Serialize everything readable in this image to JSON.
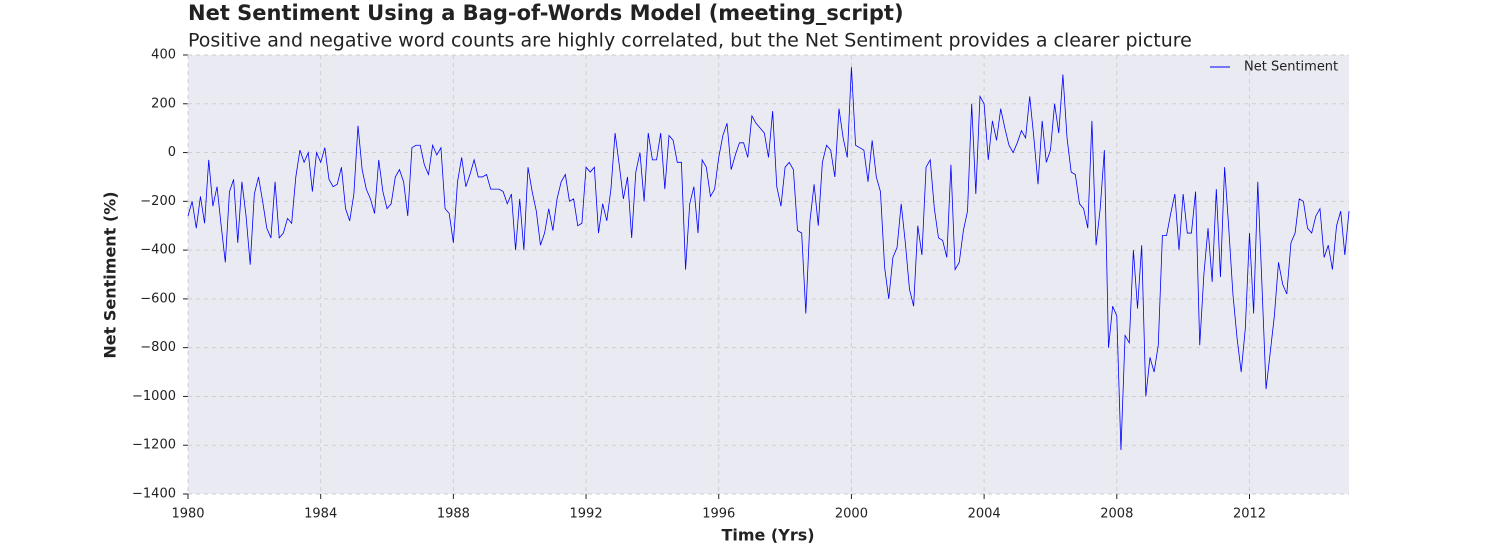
{
  "chart_data": {
    "type": "line",
    "title": "Net Sentiment Using a Bag-of-Words Model (meeting_script)",
    "subtitle": "Positive and negative word counts are highly correlated, but the Net Sentiment provides a clearer picture",
    "x_label": "Time (Yrs)",
    "y_label": "Net Sentiment (%)",
    "xlim": [
      1980,
      2015
    ],
    "xticks": [
      1980,
      1984,
      1988,
      1992,
      1996,
      2000,
      2004,
      2008,
      2012
    ],
    "ylim": [
      -1400,
      400
    ],
    "yticks": [
      {
        "value": -1400,
        "label": "−1400"
      },
      {
        "value": -1200,
        "label": "−1200"
      },
      {
        "value": -1000,
        "label": "−1000"
      },
      {
        "value": -800,
        "label": "−800"
      },
      {
        "value": -600,
        "label": "−600"
      },
      {
        "value": -400,
        "label": "−400"
      },
      {
        "value": -200,
        "label": "−200"
      },
      0,
      200,
      400
    ],
    "grid": true,
    "legend": "upper right",
    "x": [
      1980,
      1980.125,
      1980.25,
      1980.375,
      1980.5,
      1980.625,
      1980.75,
      1980.875,
      1981,
      1981.125,
      1981.25,
      1981.375,
      1981.5,
      1981.625,
      1981.75,
      1981.875,
      1982,
      1982.125,
      1982.25,
      1982.375,
      1982.5,
      1982.625,
      1982.75,
      1982.875,
      1983,
      1983.125,
      1983.25,
      1983.375,
      1983.5,
      1983.625,
      1983.75,
      1983.875,
      1984,
      1984.125,
      1984.25,
      1984.375,
      1984.5,
      1984.625,
      1984.75,
      1984.875,
      1985,
      1985.125,
      1985.25,
      1985.375,
      1985.5,
      1985.625,
      1985.75,
      1985.875,
      1986,
      1986.125,
      1986.25,
      1986.375,
      1986.5,
      1986.625,
      1986.75,
      1986.875,
      1987,
      1987.125,
      1987.25,
      1987.375,
      1987.5,
      1987.625,
      1987.75,
      1987.875,
      1988,
      1988.125,
      1988.25,
      1988.375,
      1988.5,
      1988.625,
      1988.75,
      1988.875,
      1989,
      1989.125,
      1989.25,
      1989.375,
      1989.5,
      1989.625,
      1989.75,
      1989.875,
      1990,
      1990.125,
      1990.25,
      1990.375,
      1990.5,
      1990.625,
      1990.75,
      1990.875,
      1991,
      1991.125,
      1991.25,
      1991.375,
      1991.5,
      1991.625,
      1991.75,
      1991.875,
      1992,
      1992.125,
      1992.25,
      1992.375,
      1992.5,
      1992.625,
      1992.75,
      1992.875,
      1993,
      1993.125,
      1993.25,
      1993.375,
      1993.5,
      1993.625,
      1993.75,
      1993.875,
      1994,
      1994.125,
      1994.25,
      1994.375,
      1994.5,
      1994.625,
      1994.75,
      1994.875,
      1995,
      1995.125,
      1995.25,
      1995.375,
      1995.5,
      1995.625,
      1995.75,
      1995.875,
      1996,
      1996.125,
      1996.25,
      1996.375,
      1996.5,
      1996.625,
      1996.75,
      1996.875,
      1997,
      1997.125,
      1997.25,
      1997.375,
      1997.5,
      1997.625,
      1997.75,
      1997.875,
      1998,
      1998.125,
      1998.25,
      1998.375,
      1998.5,
      1998.625,
      1998.75,
      1998.875,
      1999,
      1999.125,
      1999.25,
      1999.375,
      1999.5,
      1999.625,
      1999.75,
      1999.875,
      2000,
      2000.125,
      2000.25,
      2000.375,
      2000.5,
      2000.625,
      2000.75,
      2000.875,
      2001,
      2001.125,
      2001.25,
      2001.375,
      2001.5,
      2001.625,
      2001.75,
      2001.875,
      2002,
      2002.125,
      2002.25,
      2002.375,
      2002.5,
      2002.625,
      2002.75,
      2002.875,
      2003,
      2003.125,
      2003.25,
      2003.375,
      2003.5,
      2003.625,
      2003.75,
      2003.875,
      2004,
      2004.125,
      2004.25,
      2004.375,
      2004.5,
      2004.625,
      2004.75,
      2004.875,
      2005,
      2005.125,
      2005.25,
      2005.375,
      2005.5,
      2005.625,
      2005.75,
      2005.875,
      2006,
      2006.125,
      2006.25,
      2006.375,
      2006.5,
      2006.625,
      2006.75,
      2006.875,
      2007,
      2007.125,
      2007.25,
      2007.375,
      2007.5,
      2007.625,
      2007.75,
      2007.875,
      2008,
      2008.125,
      2008.25,
      2008.375,
      2008.5,
      2008.625,
      2008.75,
      2008.875,
      2009,
      2009.125,
      2009.25,
      2009.375,
      2009.5,
      2009.625,
      2009.75,
      2009.875,
      2010,
      2010.125,
      2010.25,
      2010.375,
      2010.5,
      2010.625,
      2010.75,
      2010.875,
      2011,
      2011.125,
      2011.25,
      2011.375,
      2011.5,
      2011.625,
      2011.75,
      2011.875,
      2012,
      2012.125,
      2012.25,
      2012.375,
      2012.5,
      2012.625,
      2012.75,
      2012.875,
      2013,
      2013.125,
      2013.25,
      2013.375,
      2013.5,
      2013.625,
      2013.75,
      2013.875,
      2014,
      2014.125,
      2014.25,
      2014.375,
      2014.5,
      2014.625,
      2014.75,
      2014.875,
      2015
    ],
    "series": [
      {
        "name": "Net Sentiment",
        "color": "#0000ff",
        "values": [
          -260,
          -200,
          -310,
          -180,
          -290,
          -30,
          -220,
          -140,
          -300,
          -450,
          -160,
          -110,
          -370,
          -120,
          -260,
          -460,
          -170,
          -100,
          -200,
          -310,
          -350,
          -120,
          -350,
          -330,
          -270,
          -290,
          -100,
          10,
          -40,
          0,
          -160,
          0,
          -40,
          20,
          -110,
          -140,
          -130,
          -60,
          -230,
          -280,
          -170,
          110,
          -70,
          -150,
          -190,
          -250,
          -30,
          -160,
          -230,
          -210,
          -100,
          -70,
          -120,
          -260,
          20,
          30,
          30,
          -50,
          -90,
          30,
          -10,
          20,
          -230,
          -250,
          -370,
          -120,
          -20,
          -140,
          -90,
          -30,
          -100,
          -100,
          -90,
          -150,
          -150,
          -150,
          -160,
          -210,
          -170,
          -400,
          -190,
          -400,
          -60,
          -160,
          -240,
          -380,
          -330,
          -230,
          -320,
          -190,
          -120,
          -90,
          -200,
          -190,
          -300,
          -290,
          -60,
          -80,
          -60,
          -330,
          -210,
          -280,
          -150,
          80,
          -50,
          -190,
          -100,
          -350,
          -80,
          0,
          -200,
          80,
          -30,
          -30,
          80,
          -150,
          70,
          50,
          -40,
          -40,
          -480,
          -210,
          -140,
          -330,
          -30,
          -60,
          -180,
          -150,
          -20,
          70,
          120,
          -70,
          -10,
          40,
          40,
          -20,
          150,
          120,
          100,
          80,
          -20,
          170,
          -140,
          -220,
          -60,
          -40,
          -70,
          -320,
          -330,
          -660,
          -280,
          -130,
          -300,
          -40,
          30,
          10,
          -100,
          180,
          60,
          -20,
          350,
          30,
          20,
          10,
          -120,
          50,
          -100,
          -160,
          -470,
          -600,
          -430,
          -390,
          -210,
          -370,
          -560,
          -630,
          -300,
          -420,
          -60,
          -30,
          -230,
          -350,
          -360,
          -430,
          -50,
          -480,
          -450,
          -320,
          -240,
          200,
          -170,
          230,
          200,
          -30,
          130,
          50,
          180,
          100,
          30,
          0,
          40,
          90,
          60,
          230,
          60,
          -130,
          130,
          -40,
          10,
          200,
          80,
          320,
          60,
          -80,
          -90,
          -210,
          -230,
          -310,
          130,
          -380,
          -230,
          10,
          -800,
          -630,
          -670,
          -1220,
          -750,
          -780,
          -400,
          -640,
          -380,
          -1000,
          -840,
          -900,
          -790,
          -340,
          -340,
          -250,
          -170,
          -400,
          -170,
          -330,
          -330,
          -160,
          -790,
          -500,
          -310,
          -530,
          -150,
          -510,
          -60,
          -310,
          -580,
          -760,
          -900,
          -720,
          -330,
          -660,
          -120,
          -540,
          -970,
          -820,
          -670,
          -450,
          -540,
          -580,
          -370,
          -330,
          -190,
          -200,
          -310,
          -330,
          -260,
          -230,
          -430,
          -380,
          -480,
          -300,
          -240,
          -420,
          -240
        ]
      }
    ]
  }
}
